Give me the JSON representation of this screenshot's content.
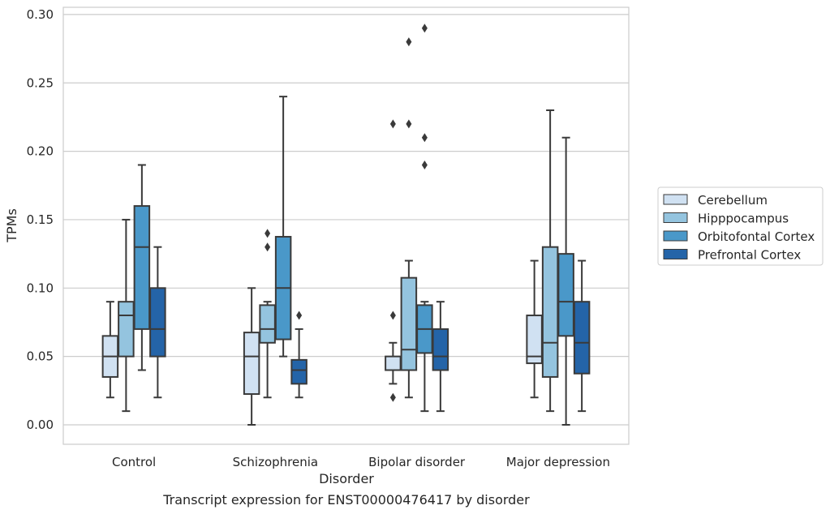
{
  "chart_data": {
    "type": "box",
    "caption": "Transcript expression for ENST00000476417 by disorder",
    "xlabel": "Disorder",
    "ylabel": "TPMs",
    "ylim": [
      -0.014,
      0.305
    ],
    "yticks": [
      "0.00",
      "0.05",
      "0.10",
      "0.15",
      "0.20",
      "0.25",
      "0.30"
    ],
    "ytick_values": [
      0.0,
      0.05,
      0.1,
      0.15,
      0.2,
      0.25,
      0.3
    ],
    "grid": "horizontal",
    "legend_position": "right-outside",
    "categories": [
      "Control",
      "Schizophrenia",
      "Bipolar disorder",
      "Major depression"
    ],
    "series": [
      {
        "name": "Cerebellum",
        "color": "#d0e1f2",
        "boxes": [
          {
            "whisker_low": 0.02,
            "q1": 0.035,
            "median": 0.05,
            "q3": 0.065,
            "whisker_high": 0.09,
            "outliers": []
          },
          {
            "whisker_low": 0.0,
            "q1": 0.0225,
            "median": 0.05,
            "q3": 0.0675,
            "whisker_high": 0.1,
            "outliers": []
          },
          {
            "whisker_low": 0.03,
            "q1": 0.04,
            "median": 0.04,
            "q3": 0.05,
            "whisker_high": 0.06,
            "outliers": [
              0.02,
              0.08,
              0.22
            ]
          },
          {
            "whisker_low": 0.02,
            "q1": 0.045,
            "median": 0.05,
            "q3": 0.08,
            "whisker_high": 0.12,
            "outliers": []
          }
        ]
      },
      {
        "name": "Hipppocampus",
        "color": "#94c4df",
        "boxes": [
          {
            "whisker_low": 0.01,
            "q1": 0.05,
            "median": 0.08,
            "q3": 0.09,
            "whisker_high": 0.15,
            "outliers": []
          },
          {
            "whisker_low": 0.02,
            "q1": 0.06,
            "median": 0.07,
            "q3": 0.0875,
            "whisker_high": 0.09,
            "outliers": [
              0.13,
              0.14
            ]
          },
          {
            "whisker_low": 0.02,
            "q1": 0.04,
            "median": 0.055,
            "q3": 0.1075,
            "whisker_high": 0.12,
            "outliers": [
              0.22,
              0.28
            ]
          },
          {
            "whisker_low": 0.01,
            "q1": 0.035,
            "median": 0.06,
            "q3": 0.13,
            "whisker_high": 0.23,
            "outliers": []
          }
        ]
      },
      {
        "name": "Orbitofontal Cortex",
        "color": "#4a98c9",
        "boxes": [
          {
            "whisker_low": 0.04,
            "q1": 0.07,
            "median": 0.13,
            "q3": 0.16,
            "whisker_high": 0.19,
            "outliers": []
          },
          {
            "whisker_low": 0.05,
            "q1": 0.0625,
            "median": 0.1,
            "q3": 0.1375,
            "whisker_high": 0.24,
            "outliers": []
          },
          {
            "whisker_low": 0.01,
            "q1": 0.0525,
            "median": 0.07,
            "q3": 0.0875,
            "whisker_high": 0.09,
            "outliers": [
              0.19,
              0.21,
              0.29
            ]
          },
          {
            "whisker_low": 0.0,
            "q1": 0.065,
            "median": 0.09,
            "q3": 0.125,
            "whisker_high": 0.21,
            "outliers": []
          }
        ]
      },
      {
        "name": "Prefrontal Cortex",
        "color": "#2464a8",
        "boxes": [
          {
            "whisker_low": 0.02,
            "q1": 0.05,
            "median": 0.07,
            "q3": 0.1,
            "whisker_high": 0.13,
            "outliers": []
          },
          {
            "whisker_low": 0.02,
            "q1": 0.03,
            "median": 0.04,
            "q3": 0.0475,
            "whisker_high": 0.07,
            "outliers": [
              0.08
            ]
          },
          {
            "whisker_low": 0.01,
            "q1": 0.04,
            "median": 0.05,
            "q3": 0.07,
            "whisker_high": 0.09,
            "outliers": []
          },
          {
            "whisker_low": 0.01,
            "q1": 0.0375,
            "median": 0.06,
            "q3": 0.09,
            "whisker_high": 0.12,
            "outliers": []
          }
        ]
      }
    ]
  }
}
